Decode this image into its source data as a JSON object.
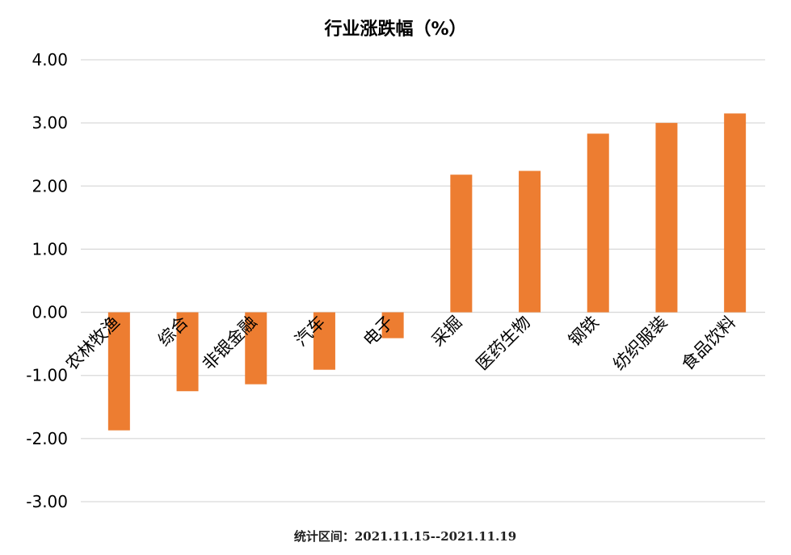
{
  "chart_data": {
    "type": "bar",
    "title": "行业涨跌幅（%）",
    "categories": [
      "农林牧渔",
      "综合",
      "非银金融",
      "汽车",
      "电子",
      "采掘",
      "医药生物",
      "钢铁",
      "纺织服装",
      "食品饮料"
    ],
    "values": [
      -1.87,
      -1.25,
      -1.14,
      -0.91,
      -0.41,
      2.18,
      2.24,
      2.83,
      3.0,
      3.15
    ],
    "ylim": [
      -3,
      4
    ],
    "yticks": [
      "4.00",
      "3.00",
      "2.00",
      "1.00",
      "0.00",
      "-1.00",
      "-2.00",
      "-3.00"
    ],
    "xlabel": "",
    "ylabel": "",
    "grid": true,
    "bar_color": "#ED7D31",
    "grid_color": "#D9D9D9",
    "footnote": "统计区间：2021.11.15--2021.11.19"
  }
}
